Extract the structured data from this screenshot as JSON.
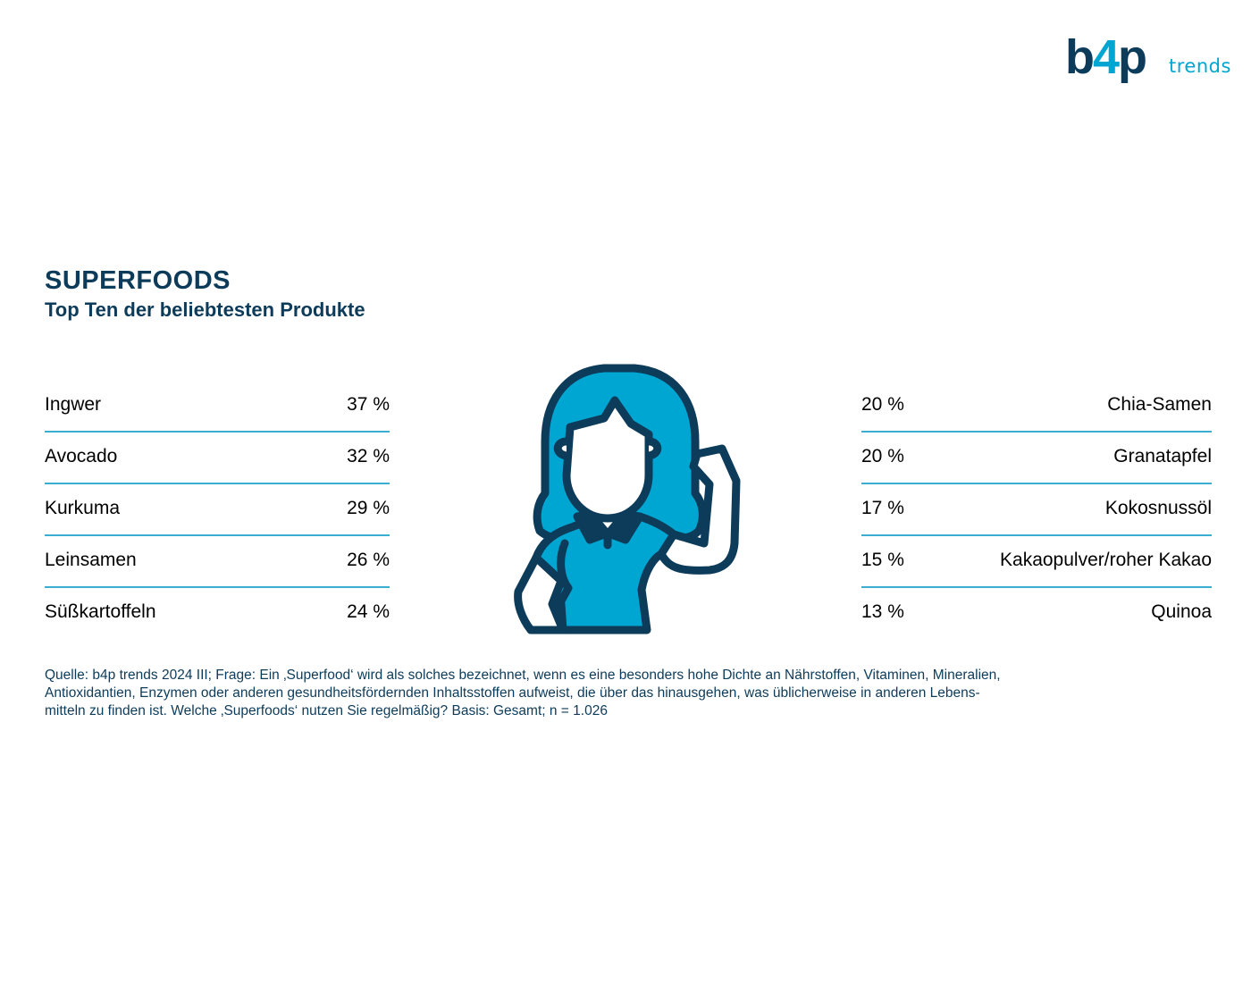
{
  "logo": {
    "brand_b": "b",
    "brand_4": "4",
    "brand_p": "p",
    "suffix": "trends"
  },
  "title": "SUPERFOODS",
  "subtitle": "Top Ten der beliebtesten Produkte",
  "colors": {
    "dark_blue": "#0d3b5a",
    "accent": "#00a6d2",
    "rule": "#3aaed1"
  },
  "chart_data": {
    "type": "table",
    "title": "SUPERFOODS",
    "subtitle": "Top Ten der beliebtesten Produkte",
    "unit": "%",
    "left": [
      {
        "name": "Ingwer",
        "value": 37,
        "label": "37 %"
      },
      {
        "name": "Avocado",
        "value": 32,
        "label": "32 %"
      },
      {
        "name": "Kurkuma",
        "value": 29,
        "label": "29 %"
      },
      {
        "name": "Leinsamen",
        "value": 26,
        "label": "26 %"
      },
      {
        "name": "Süßkartoffeln",
        "value": 24,
        "label": "24 %"
      }
    ],
    "right": [
      {
        "name": "Chia-Samen",
        "value": 20,
        "label": "20 %"
      },
      {
        "name": "Granatapfel",
        "value": 20,
        "label": "20 %"
      },
      {
        "name": "Kokosnussöl",
        "value": 17,
        "label": "17 %"
      },
      {
        "name": "Kakaopulver/roher Kakao",
        "value": 15,
        "label": "15 %"
      },
      {
        "name": "Quinoa",
        "value": 13,
        "label": "13 %"
      }
    ]
  },
  "illustration": {
    "icon": "woman-flexing-arm-icon"
  },
  "source": {
    "line1": "Quelle: b4p trends 2024 III; Frage: Ein ‚Superfood‘ wird als solches bezeichnet, wenn es eine besonders hohe Dichte an Nährstoffen, Vitaminen, Mineralien,",
    "line2": "Antioxidantien, Enzymen oder anderen gesundheitsfördernden Inhaltsstoffen aufweist, die über das hinausgehen, was üblicherweise in anderen Lebens-",
    "line3": "mitteln zu finden ist. Welche ‚Superfoods‘ nutzen Sie regelmäßig? Basis: Gesamt; n = 1.026"
  }
}
